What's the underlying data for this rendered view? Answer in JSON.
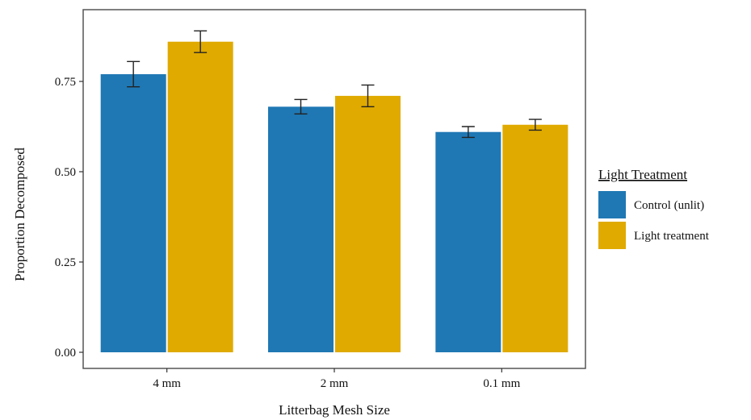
{
  "chart_data": {
    "type": "bar",
    "title": "",
    "xlabel": "Litterbag Mesh Size",
    "ylabel": "Proportion Decomposed",
    "categories": [
      "4 mm",
      "2 mm",
      "0.1 mm"
    ],
    "ylim": [
      0,
      0.93
    ],
    "yticks": [
      0.0,
      0.25,
      0.5,
      0.75
    ],
    "ytick_labels": [
      "0.00",
      "0.25",
      "0.50",
      "0.75"
    ],
    "grid": false,
    "legend": {
      "title": "Light Treatment",
      "position": "right"
    },
    "series": [
      {
        "name": "Control (unlit)",
        "color": "#1f78b4",
        "values": [
          0.77,
          0.68,
          0.61
        ],
        "error": [
          0.035,
          0.02,
          0.015
        ]
      },
      {
        "name": "Light treatment",
        "color": "#e0aa00",
        "values": [
          0.86,
          0.71,
          0.63
        ],
        "error": [
          0.03,
          0.03,
          0.015
        ]
      }
    ]
  }
}
